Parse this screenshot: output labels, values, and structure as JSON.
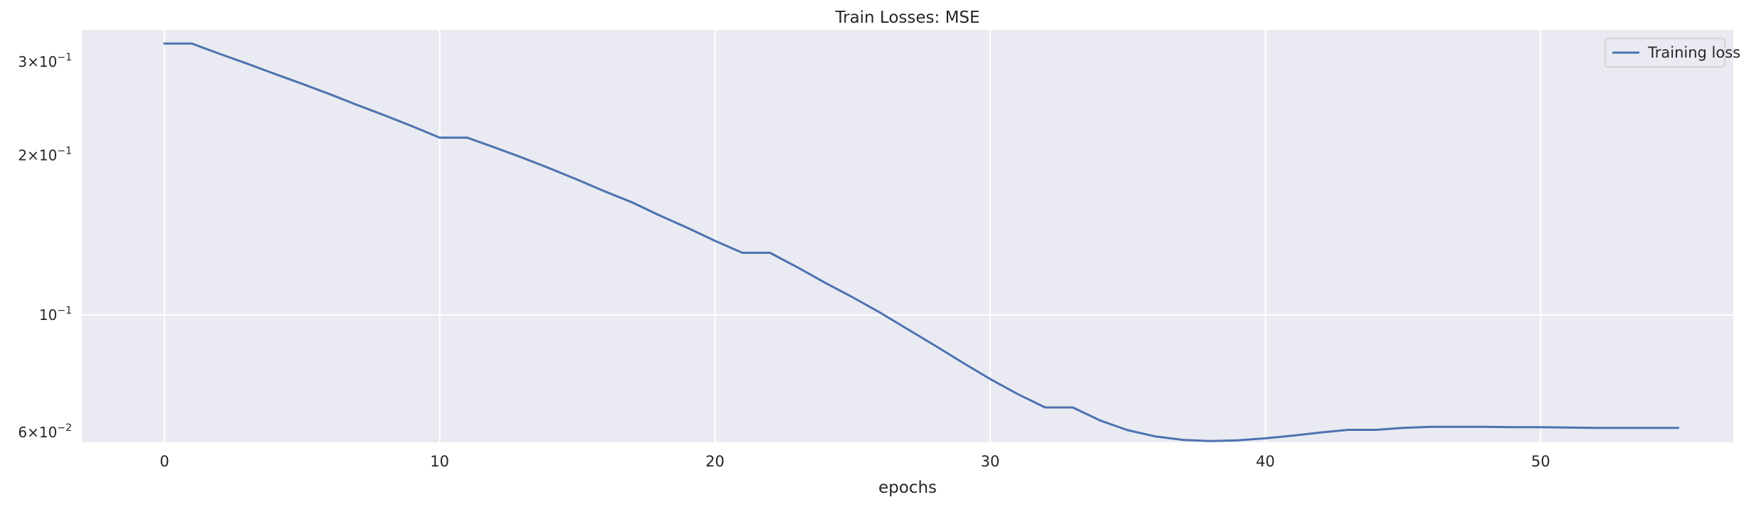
{
  "chart_data": {
    "type": "line",
    "title": "Train Losses:  MSE",
    "xlabel": "epochs",
    "ylabel": "",
    "yscale": "log",
    "xlim": [
      -3,
      57
    ],
    "ylim": [
      0.0575,
      0.345
    ],
    "x_ticks": [
      0,
      10,
      20,
      30,
      40,
      50
    ],
    "y_ticks": [
      {
        "value": 0.3,
        "mantissa": "3",
        "base": "10",
        "exp": "−1"
      },
      {
        "value": 0.2,
        "mantissa": "2",
        "base": "10",
        "exp": "−1"
      },
      {
        "value": 0.1,
        "mantissa": "",
        "base": "10",
        "exp": "−1"
      },
      {
        "value": 0.06,
        "mantissa": "6",
        "base": "10",
        "exp": "−2"
      }
    ],
    "grid": true,
    "legend": {
      "placement": "top-right"
    },
    "series": [
      {
        "name": "Training loss",
        "color": "#4c72b0",
        "x": [
          0,
          1,
          2,
          3,
          4,
          5,
          6,
          7,
          8,
          9,
          10,
          11,
          12,
          13,
          14,
          15,
          16,
          17,
          18,
          19,
          20,
          21,
          22,
          23,
          24,
          25,
          26,
          27,
          28,
          29,
          30,
          31,
          32,
          33,
          34,
          35,
          36,
          37,
          38,
          39,
          40,
          41,
          42,
          43,
          44,
          45,
          46,
          47,
          48,
          49,
          50,
          51,
          52,
          53,
          54,
          55
        ],
        "y": [
          0.325,
          0.325,
          0.311,
          0.298,
          0.285,
          0.273,
          0.261,
          0.249,
          0.238,
          0.227,
          0.216,
          0.216,
          0.207,
          0.198,
          0.189,
          0.18,
          0.171,
          0.163,
          0.154,
          0.146,
          0.138,
          0.131,
          0.131,
          0.123,
          0.115,
          0.108,
          0.101,
          0.094,
          0.0875,
          0.0813,
          0.0757,
          0.0709,
          0.0669,
          0.0669,
          0.0632,
          0.0606,
          0.059,
          0.0581,
          0.0578,
          0.058,
          0.0585,
          0.0592,
          0.06,
          0.0607,
          0.0607,
          0.0612,
          0.0615,
          0.0615,
          0.0615,
          0.0614,
          0.0614,
          0.0613,
          0.0612,
          0.0612,
          0.0612,
          0.0612
        ]
      }
    ]
  }
}
